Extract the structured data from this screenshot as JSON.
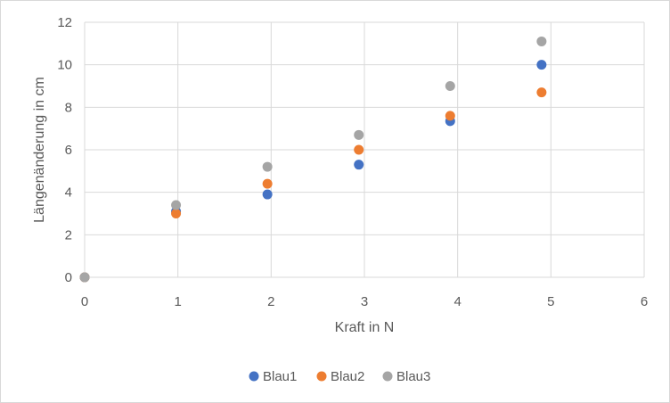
{
  "chart_data": {
    "type": "scatter",
    "title": "",
    "xlabel": "Kraft in N",
    "ylabel": "Längenänderung in cm",
    "xlim": [
      0,
      6
    ],
    "ylim": [
      0,
      12
    ],
    "xticks": [
      0,
      1,
      2,
      3,
      4,
      5,
      6
    ],
    "yticks": [
      0,
      2,
      4,
      6,
      8,
      10,
      12
    ],
    "grid": true,
    "legend_position": "bottom",
    "series": [
      {
        "name": "Blau1",
        "color": "#4472c4",
        "x": [
          0,
          0.98,
          1.96,
          2.94,
          3.92,
          4.9
        ],
        "y": [
          0,
          3.1,
          3.9,
          5.3,
          7.35,
          10.0
        ]
      },
      {
        "name": "Blau2",
        "color": "#ed7d31",
        "x": [
          0,
          0.98,
          1.96,
          2.94,
          3.92,
          4.9
        ],
        "y": [
          0,
          3.0,
          4.4,
          6.0,
          7.6,
          8.7
        ]
      },
      {
        "name": "Blau3",
        "color": "#a5a5a5",
        "x": [
          0,
          0.98,
          1.96,
          2.94,
          3.92,
          4.9
        ],
        "y": [
          0,
          3.4,
          5.2,
          6.7,
          9.0,
          11.1
        ]
      }
    ]
  }
}
